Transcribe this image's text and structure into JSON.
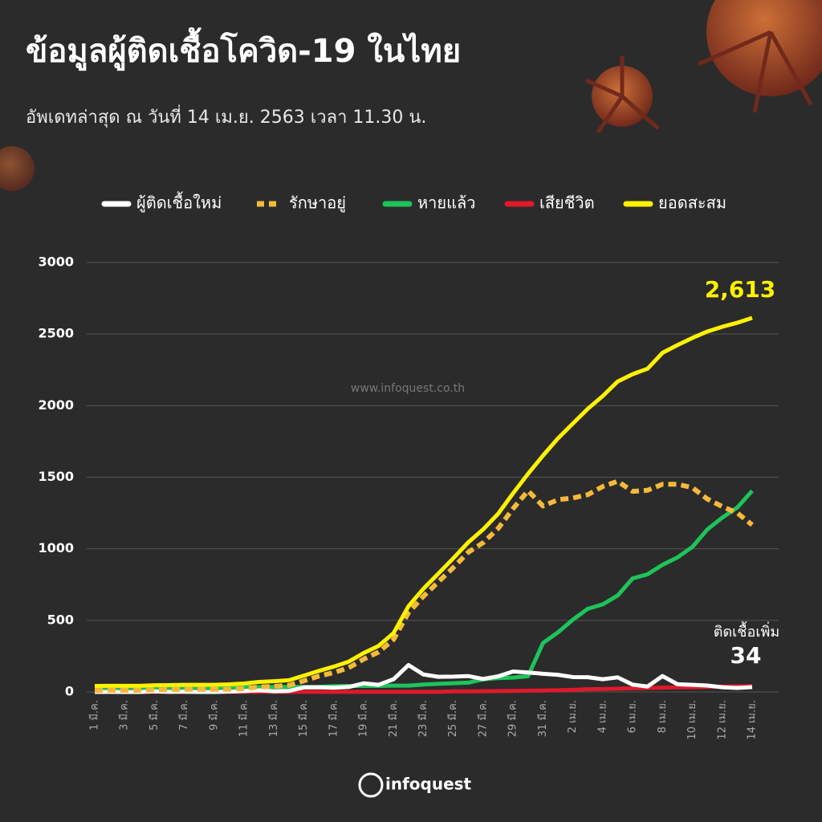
{
  "chart_data": {
    "type": "line",
    "title": "ข้อมูลผู้ติดเชื้อโควิด-19 ในไทย",
    "subtitle": "อัพเดทล่าสุด ณ วันที่  14 เม.ย. 2563 เวลา 11.30 น.",
    "watermark": "www.infoquest.co.th",
    "brand": "infoquest",
    "categories": [
      "1 มี.ค.",
      null,
      "3 มี.ค.",
      null,
      "5 มี.ค.",
      null,
      "7 มี.ค.",
      null,
      "9 มี.ค.",
      null,
      "11 มี.ค.",
      null,
      "13 มี.ค.",
      null,
      "15 มี.ค.",
      null,
      "17 มี.ค.",
      null,
      "19 มี.ค.",
      null,
      "21 มี.ค.",
      null,
      "23 มี.ค.",
      null,
      "25 มี.ค.",
      null,
      "27 มี.ค.",
      null,
      "29 มี.ค.",
      null,
      "31 มี.ค.",
      null,
      "2 เม.ย.",
      null,
      "4 เม.ย.",
      null,
      "6 เม.ย.",
      null,
      "8 เม.ย.",
      null,
      "10 เม.ย.",
      null,
      "12 เม.ย.",
      null,
      "14 เม.ย."
    ],
    "ylim": [
      0,
      3000
    ],
    "yticks": [
      0,
      500,
      1000,
      1500,
      2000,
      2500,
      3000
    ],
    "grid": true,
    "series": [
      {
        "name": "ผู้ติดเชื้อใหม่",
        "color": "#ffffff",
        "style": "solid",
        "values": [
          0,
          1,
          0,
          0,
          4,
          1,
          2,
          0,
          0,
          3,
          6,
          11,
          5,
          7,
          32,
          33,
          30,
          35,
          60,
          50,
          89,
          188,
          122,
          106,
          107,
          111,
          91,
          109,
          143,
          136,
          127,
          120,
          104,
          103,
          89,
          102,
          51,
          38,
          111,
          54,
          50,
          45,
          33,
          28,
          34
        ],
        "value_labels": [
          null,
          null,
          null,
          null,
          null,
          null,
          null,
          null,
          null,
          null,
          null,
          null,
          null,
          null,
          null,
          null,
          null,
          null,
          null,
          null,
          null,
          null,
          null,
          null,
          null,
          null,
          null,
          null,
          null,
          null,
          null,
          null,
          null,
          null,
          null,
          null,
          null,
          null,
          null,
          null,
          null,
          null,
          null,
          null,
          "34"
        ]
      },
      {
        "name": "รักษาอยู่",
        "color": "#f5b93a",
        "style": "dashed",
        "values": [
          10,
          11,
          11,
          11,
          15,
          16,
          18,
          18,
          18,
          19,
          24,
          35,
          39,
          46,
          78,
          111,
          135,
          169,
          229,
          279,
          366,
          554,
          668,
          769,
          869,
          976,
          1043,
          1142,
          1281,
          1405,
          1299,
          1343,
          1355,
          1378,
          1435,
          1472,
          1401,
          1409,
          1451,
          1451,
          1427,
          1348,
          1295,
          1251,
          1167
        ]
      },
      {
        "name": "หายแล้ว",
        "color": "#1ec35a",
        "style": "solid",
        "values": [
          31,
          31,
          31,
          31,
          31,
          31,
          31,
          31,
          31,
          33,
          34,
          34,
          35,
          35,
          35,
          35,
          41,
          42,
          42,
          42,
          44,
          44,
          52,
          57,
          61,
          65,
          88,
          97,
          100,
          110,
          342,
          416,
          505,
          581,
          612,
          674,
          793,
          822,
          888,
          940,
          1013,
          1135,
          1218,
          1288,
          1405
        ]
      },
      {
        "name": "เสียชีวิต",
        "color": "#e0192b",
        "style": "solid",
        "values": [
          1,
          1,
          1,
          1,
          1,
          1,
          1,
          1,
          1,
          1,
          1,
          1,
          1,
          1,
          1,
          1,
          1,
          1,
          1,
          1,
          1,
          1,
          1,
          1,
          4,
          4,
          5,
          6,
          7,
          9,
          10,
          12,
          15,
          19,
          20,
          23,
          26,
          27,
          30,
          32,
          33,
          35,
          38,
          40,
          41
        ]
      },
      {
        "name": "ยอดสะสม",
        "color": "#fff200",
        "style": "solid",
        "values": [
          42,
          43,
          43,
          43,
          47,
          48,
          50,
          50,
          50,
          53,
          59,
          70,
          75,
          82,
          114,
          147,
          177,
          212,
          272,
          322,
          411,
          599,
          721,
          827,
          934,
          1045,
          1136,
          1245,
          1388,
          1524,
          1651,
          1771,
          1875,
          1978,
          2067,
          2169,
          2220,
          2258,
          2369,
          2423,
          2473,
          2518,
          2551,
          2579,
          2613
        ],
        "value_labels": [
          null,
          null,
          null,
          null,
          null,
          null,
          null,
          null,
          null,
          null,
          null,
          null,
          null,
          null,
          null,
          null,
          null,
          null,
          null,
          null,
          null,
          null,
          null,
          null,
          null,
          null,
          null,
          null,
          null,
          null,
          null,
          null,
          null,
          null,
          null,
          null,
          null,
          null,
          null,
          null,
          null,
          null,
          null,
          null,
          "2,613"
        ]
      }
    ],
    "annotations": [
      {
        "text": "ติดเชื้อเพิ่ม"
      }
    ]
  }
}
